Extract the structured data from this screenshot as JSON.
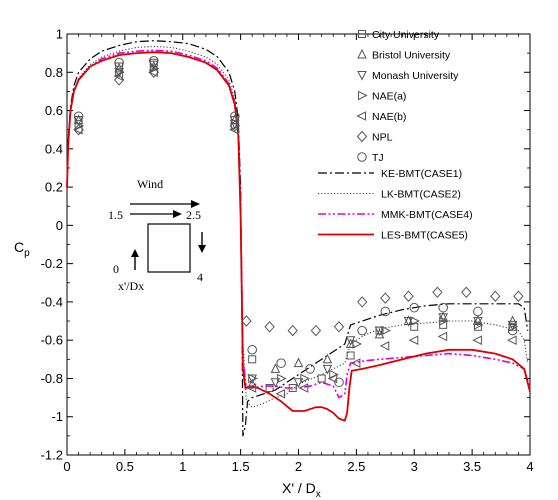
{
  "chart_data": {
    "type": "scatter",
    "xlabel_main": "X'",
    "xlabel_sub": "x",
    "xlabel_sep": " / D",
    "ylabel_main": "C",
    "ylabel_sub": "p",
    "xlim": [
      0,
      4
    ],
    "ylim": [
      -1.2,
      1
    ],
    "xticks": [
      0,
      0.5,
      1,
      1.5,
      2,
      2.5,
      3,
      3.5,
      4
    ],
    "xtick_labels": [
      "0",
      "0.5",
      "1",
      "1.5",
      "2",
      "2.5",
      "3",
      "3.5",
      "4"
    ],
    "yticks": [
      1,
      0.8,
      0.6,
      0.4,
      0.2,
      0,
      -0.2,
      -0.4,
      -0.6,
      -0.8,
      -1,
      -1.2
    ],
    "ytick_labels": [
      "1",
      "0.8",
      "0.6",
      "0.4",
      "0.2",
      "0",
      "-0.2",
      "-0.4",
      "-0.6",
      "-0.8",
      "-1",
      "-1.2"
    ],
    "grid": false,
    "legend_position": "top-right",
    "marker_series": [
      {
        "name": "City University",
        "marker": "square",
        "x": [
          0.1,
          0.45,
          0.75,
          1.45,
          1.6,
          1.75,
          1.95,
          2.2,
          2.45,
          2.7,
          3.0,
          3.25,
          3.55,
          3.85
        ],
        "y": [
          0.55,
          0.83,
          0.85,
          0.55,
          -0.7,
          -0.85,
          -0.85,
          -0.8,
          -0.68,
          -0.55,
          -0.53,
          -0.52,
          -0.53,
          -0.53
        ]
      },
      {
        "name": "Bristol University",
        "marker": "triangle-up",
        "x": [
          0.1,
          0.45,
          0.75,
          1.45,
          1.6,
          1.8,
          2.0,
          2.25,
          2.45,
          2.7,
          2.95,
          3.25,
          3.55,
          3.85
        ],
        "y": [
          0.55,
          0.82,
          0.83,
          0.55,
          -0.83,
          -0.75,
          -0.72,
          -0.7,
          -0.62,
          -0.57,
          -0.5,
          -0.48,
          -0.5,
          -0.5
        ]
      },
      {
        "name": "Monash University",
        "marker": "triangle-down",
        "x": [
          0.1,
          0.45,
          0.75,
          1.45,
          1.6,
          1.8,
          2.0,
          2.25,
          2.45,
          2.7,
          2.95,
          3.25,
          3.55,
          3.85
        ],
        "y": [
          0.55,
          0.8,
          0.84,
          0.53,
          -0.8,
          -0.82,
          -0.82,
          -0.75,
          -0.6,
          -0.55,
          -0.5,
          -0.48,
          -0.5,
          -0.52
        ]
      },
      {
        "name": "NAE(a)",
        "marker": "triangle-right",
        "x": [
          0.1,
          0.45,
          0.75,
          1.45,
          1.6,
          1.85,
          2.05,
          2.3,
          2.5,
          2.75,
          3.0,
          3.25,
          3.55,
          3.85
        ],
        "y": [
          0.52,
          0.8,
          0.82,
          0.52,
          -0.8,
          -0.8,
          -0.8,
          -0.78,
          -0.62,
          -0.55,
          -0.5,
          -0.5,
          -0.52,
          -0.53
        ]
      },
      {
        "name": "NAE(b)",
        "marker": "triangle-left",
        "x": [
          0.1,
          0.45,
          0.75,
          1.45,
          1.6,
          1.85,
          2.05,
          2.3,
          2.5,
          2.75,
          3.0,
          3.25,
          3.55,
          3.85
        ],
        "y": [
          0.5,
          0.78,
          0.8,
          0.5,
          -0.85,
          -0.88,
          -0.85,
          -0.8,
          -0.72,
          -0.63,
          -0.6,
          -0.58,
          -0.6,
          -0.6
        ]
      },
      {
        "name": "NPL",
        "marker": "diamond",
        "x": [
          0.1,
          0.45,
          0.75,
          1.45,
          1.55,
          1.75,
          1.95,
          2.15,
          2.35,
          2.55,
          2.75,
          2.95,
          3.2,
          3.45,
          3.7,
          3.9
        ],
        "y": [
          0.5,
          0.76,
          0.8,
          0.52,
          -0.5,
          -0.53,
          -0.55,
          -0.55,
          -0.53,
          -0.4,
          -0.38,
          -0.37,
          -0.35,
          -0.35,
          -0.37,
          -0.37
        ]
      },
      {
        "name": "TJ",
        "marker": "circle",
        "x": [
          0.1,
          0.45,
          0.75,
          1.45,
          1.6,
          1.85,
          2.1,
          2.35,
          2.55,
          2.75,
          3.0,
          3.25,
          3.55,
          3.85
        ],
        "y": [
          0.57,
          0.85,
          0.86,
          0.57,
          -0.65,
          -0.72,
          -0.75,
          -0.82,
          -0.55,
          -0.45,
          -0.43,
          -0.43,
          -0.45,
          -0.55
        ]
      }
    ],
    "line_series": [
      {
        "name": "KE-BMT(CASE1)",
        "style": "dashdot",
        "color": "#000000",
        "x": [
          0,
          0.01,
          0.03,
          0.06,
          0.1,
          0.2,
          0.3,
          0.45,
          0.6,
          0.75,
          0.9,
          1.05,
          1.2,
          1.3,
          1.4,
          1.45,
          1.48,
          1.5,
          1.51,
          1.52,
          1.54,
          1.56,
          1.6,
          1.7,
          1.8,
          1.9,
          2.0,
          2.2,
          2.4,
          2.45,
          2.55,
          2.7,
          2.9,
          3.1,
          3.3,
          3.5,
          3.7,
          3.9,
          3.95,
          3.98
        ],
        "y": [
          0.2,
          0.45,
          0.62,
          0.73,
          0.8,
          0.87,
          0.91,
          0.94,
          0.96,
          0.965,
          0.96,
          0.95,
          0.92,
          0.88,
          0.8,
          0.7,
          0.55,
          0.2,
          -0.4,
          -1.1,
          -1.05,
          -0.92,
          -0.9,
          -0.88,
          -0.86,
          -0.82,
          -0.78,
          -0.7,
          -0.62,
          -0.52,
          -0.5,
          -0.47,
          -0.44,
          -0.42,
          -0.41,
          -0.41,
          -0.41,
          -0.41,
          -0.43,
          -0.55
        ]
      },
      {
        "name": "LK-BMT(CASE2)",
        "style": "dotted",
        "color": "#444444",
        "x": [
          0,
          0.01,
          0.03,
          0.06,
          0.1,
          0.2,
          0.3,
          0.45,
          0.6,
          0.75,
          0.9,
          1.05,
          1.2,
          1.3,
          1.4,
          1.45,
          1.48,
          1.5,
          1.52,
          1.55,
          1.6,
          1.7,
          1.8,
          1.9,
          2.0,
          2.2,
          2.4,
          2.45,
          2.55,
          2.7,
          2.9,
          3.1,
          3.3,
          3.5,
          3.7,
          3.9,
          3.95,
          3.98
        ],
        "y": [
          0.2,
          0.42,
          0.6,
          0.7,
          0.77,
          0.84,
          0.88,
          0.91,
          0.93,
          0.935,
          0.93,
          0.91,
          0.88,
          0.84,
          0.76,
          0.66,
          0.5,
          0.15,
          -0.6,
          -0.92,
          -0.95,
          -0.93,
          -0.9,
          -0.88,
          -0.83,
          -0.78,
          -0.72,
          -0.62,
          -0.58,
          -0.54,
          -0.52,
          -0.51,
          -0.5,
          -0.5,
          -0.52,
          -0.55,
          -0.6,
          -0.72
        ]
      },
      {
        "name": "MMK-BMT(CASE4)",
        "style": "dashdotdot",
        "color": "#e000e0",
        "x": [
          0,
          0.01,
          0.03,
          0.06,
          0.1,
          0.2,
          0.3,
          0.45,
          0.6,
          0.75,
          0.9,
          1.05,
          1.2,
          1.3,
          1.4,
          1.45,
          1.48,
          1.5,
          1.52,
          1.55,
          1.6,
          1.7,
          1.8,
          1.9,
          2.0,
          2.1,
          2.2,
          2.3,
          2.35,
          2.4,
          2.42,
          2.45,
          2.55,
          2.7,
          2.9,
          3.1,
          3.3,
          3.5,
          3.7,
          3.85,
          3.95,
          4.0
        ],
        "y": [
          0.2,
          0.42,
          0.6,
          0.7,
          0.76,
          0.83,
          0.87,
          0.9,
          0.91,
          0.915,
          0.91,
          0.89,
          0.86,
          0.82,
          0.74,
          0.64,
          0.48,
          0.1,
          -0.7,
          -0.85,
          -0.85,
          -0.84,
          -0.84,
          -0.85,
          -0.85,
          -0.84,
          -0.82,
          -0.84,
          -0.9,
          -0.88,
          -0.78,
          -0.72,
          -0.71,
          -0.7,
          -0.69,
          -0.68,
          -0.67,
          -0.68,
          -0.7,
          -0.72,
          -0.75,
          -0.85
        ]
      },
      {
        "name": "LES-BMT(CASE5)",
        "style": "solid",
        "color": "#dd0000",
        "x": [
          0,
          0.01,
          0.03,
          0.06,
          0.1,
          0.2,
          0.3,
          0.45,
          0.6,
          0.75,
          0.9,
          1.05,
          1.2,
          1.3,
          1.4,
          1.45,
          1.48,
          1.5,
          1.52,
          1.54,
          1.58,
          1.65,
          1.75,
          1.85,
          1.95,
          2.05,
          2.15,
          2.2,
          2.25,
          2.3,
          2.35,
          2.4,
          2.42,
          2.44,
          2.46,
          2.55,
          2.7,
          2.9,
          3.1,
          3.3,
          3.5,
          3.7,
          3.85,
          3.95,
          4.0
        ],
        "y": [
          0.2,
          0.42,
          0.6,
          0.7,
          0.76,
          0.83,
          0.86,
          0.89,
          0.9,
          0.905,
          0.9,
          0.88,
          0.85,
          0.81,
          0.73,
          0.63,
          0.47,
          0.05,
          -0.75,
          -0.85,
          -0.84,
          -0.85,
          -0.88,
          -0.92,
          -0.97,
          -0.97,
          -0.95,
          -0.95,
          -0.96,
          -0.98,
          -1.01,
          -1.02,
          -0.98,
          -0.85,
          -0.76,
          -0.75,
          -0.73,
          -0.7,
          -0.67,
          -0.65,
          -0.65,
          -0.67,
          -0.7,
          -0.75,
          -0.87
        ]
      }
    ]
  },
  "inset": {
    "wind_label": "Wind",
    "label_1_5": "1.5",
    "label_2_5": "2.5",
    "label_0": "0",
    "label_4": "4",
    "axis_label": "x'/Dx"
  }
}
